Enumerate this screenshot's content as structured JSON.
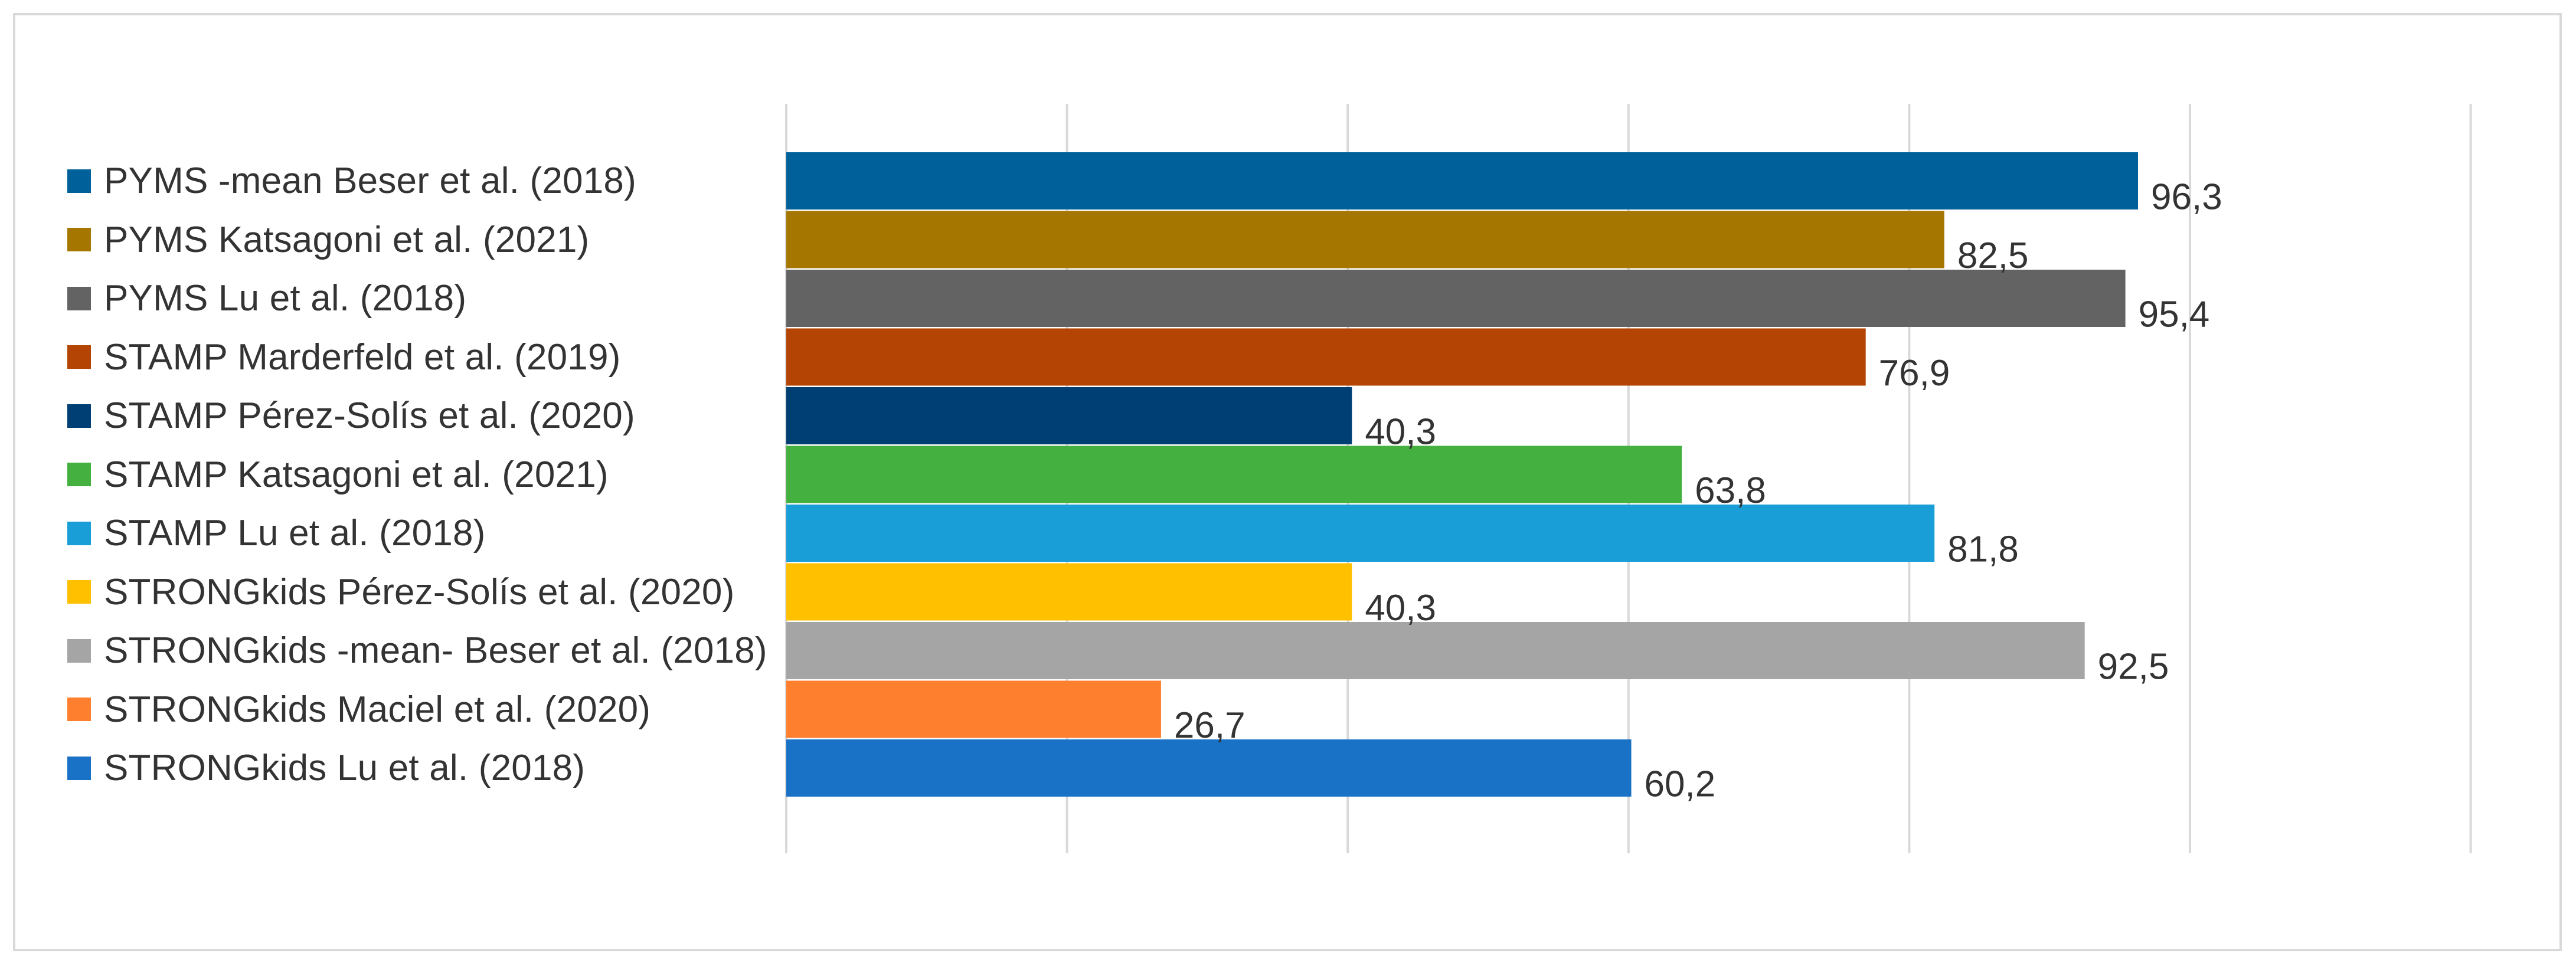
{
  "chart_data": {
    "type": "bar",
    "orientation": "horizontal",
    "title": "",
    "xlabel": "",
    "ylabel": "",
    "xlim": [
      0,
      120
    ],
    "grid": true,
    "legend_position": "left",
    "categories": [
      "PYMS -mean Beser et al. (2018)",
      "PYMS Katsagoni et al. (2021)",
      "PYMS Lu et al. (2018)",
      "STAMP Marderfeld et al. (2019)",
      "STAMP Pérez-Solís et al. (2020)",
      "STAMP Katsagoni et al. (2021)",
      "STAMP Lu et al. (2018)",
      "STRONGkids Pérez-Solís et al. (2020)",
      "STRONGkids -mean- Beser et al. (2018)",
      "STRONGkids Maciel et al. (2020)",
      "STRONGkids Lu et al. (2018)"
    ],
    "values": [
      96.3,
      82.5,
      95.4,
      76.9,
      40.3,
      63.8,
      81.8,
      40.3,
      92.5,
      26.7,
      60.2
    ],
    "value_labels": [
      "96,3",
      "82,5",
      "95,4",
      "76,9",
      "40,3",
      "63,8",
      "81,8",
      "40,3",
      "92,5",
      "26,7",
      "60,2"
    ],
    "colors": [
      "#00609a",
      "#a67700",
      "#636363",
      "#b44403",
      "#003f73",
      "#43b03f",
      "#1a9ed8",
      "#ffc000",
      "#a5a5a5",
      "#fe7f2d",
      "#1a72c7"
    ]
  }
}
